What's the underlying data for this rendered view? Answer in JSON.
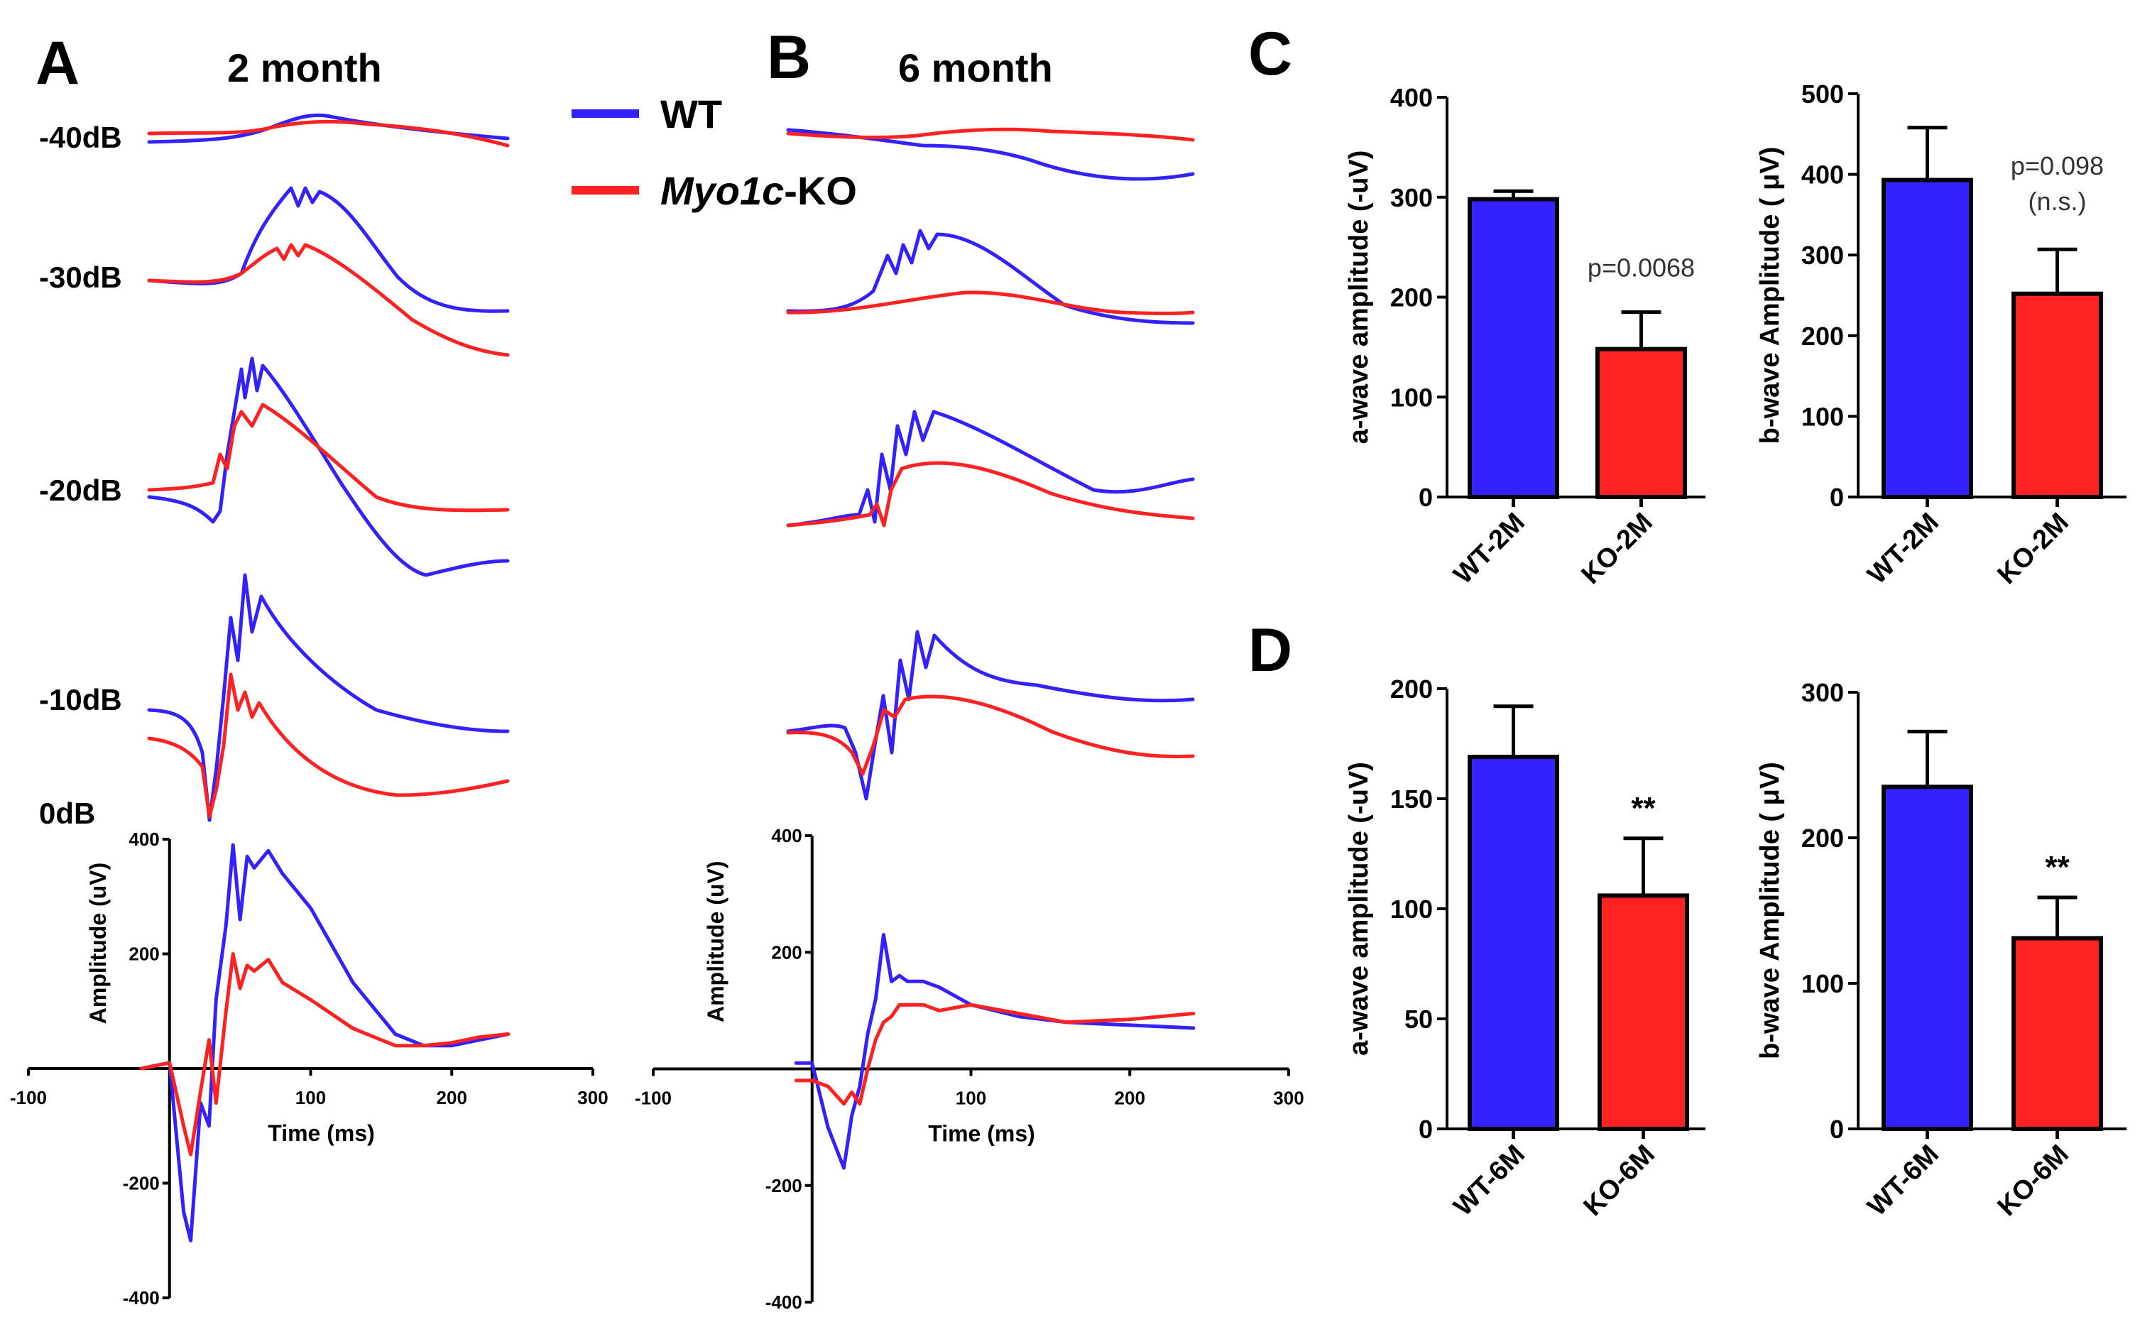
{
  "panels": {
    "A": {
      "letter": "A",
      "title": "2 month"
    },
    "B": {
      "letter": "B",
      "title": "6 month"
    },
    "C": {
      "letter": "C"
    },
    "D": {
      "letter": "D"
    }
  },
  "db_labels": [
    "-40dB",
    "-30dB",
    "-20dB",
    "-10dB",
    "0dB"
  ],
  "legend": {
    "wt": "WT",
    "ko_italic": "Myo1c",
    "ko_suffix": "-KO"
  },
  "colors": {
    "wt": "#3322ff",
    "ko": "#ff2222",
    "axis": "#000000"
  },
  "chart_data": [
    {
      "id": "A-0dB",
      "type": "line",
      "xlabel": "Time (ms)",
      "ylabel": "Amplitude (uV)",
      "xlim": [
        -100,
        300
      ],
      "ylim": [
        -400,
        400
      ],
      "xticks": [
        "-100",
        "100",
        "200",
        "300"
      ],
      "yticks": [
        "400",
        "200",
        "-200",
        "-400"
      ],
      "series": [
        {
          "name": "WT",
          "color": "#3322ff",
          "x": [
            -20,
            0,
            10,
            15,
            22,
            28,
            33,
            40,
            45,
            50,
            55,
            60,
            70,
            80,
            100,
            130,
            160,
            180,
            200,
            220,
            240
          ],
          "y": [
            0,
            10,
            -250,
            -300,
            -60,
            -100,
            120,
            250,
            390,
            260,
            370,
            350,
            380,
            340,
            280,
            150,
            60,
            40,
            40,
            50,
            60
          ]
        },
        {
          "name": "Myo1c-KO",
          "color": "#ff2222",
          "x": [
            -20,
            0,
            10,
            15,
            22,
            28,
            33,
            40,
            45,
            50,
            55,
            60,
            70,
            80,
            100,
            130,
            160,
            180,
            200,
            220,
            240
          ],
          "y": [
            0,
            10,
            -100,
            -150,
            -40,
            50,
            -60,
            100,
            200,
            140,
            180,
            170,
            190,
            150,
            120,
            70,
            40,
            40,
            45,
            55,
            60
          ]
        }
      ]
    },
    {
      "id": "B-0dB",
      "type": "line",
      "xlabel": "Time (ms)",
      "ylabel": "Amplitude (uV)",
      "xlim": [
        -100,
        300
      ],
      "ylim": [
        -400,
        400
      ],
      "xticks": [
        "-100",
        "100",
        "200",
        "300"
      ],
      "yticks": [
        "400",
        "200",
        "-200",
        "-400"
      ],
      "series": [
        {
          "name": "WT",
          "color": "#3322ff",
          "x": [
            -10,
            0,
            10,
            20,
            25,
            30,
            35,
            40,
            45,
            50,
            55,
            60,
            70,
            80,
            100,
            130,
            160,
            200,
            240
          ],
          "y": [
            10,
            10,
            -100,
            -170,
            -80,
            -30,
            60,
            120,
            230,
            150,
            160,
            150,
            150,
            140,
            110,
            90,
            80,
            75,
            70
          ]
        },
        {
          "name": "Myo1c-KO",
          "color": "#ff2222",
          "x": [
            -10,
            0,
            10,
            20,
            25,
            30,
            35,
            40,
            45,
            50,
            55,
            60,
            70,
            80,
            100,
            130,
            160,
            200,
            240
          ],
          "y": [
            -20,
            -20,
            -30,
            -60,
            -40,
            -60,
            0,
            50,
            80,
            90,
            110,
            110,
            110,
            100,
            110,
            95,
            80,
            85,
            95
          ]
        }
      ]
    },
    {
      "id": "C-a-wave",
      "type": "bar",
      "ylabel": "a-wave amplitude (-uV)",
      "categories": [
        "WT-2M",
        "KO-2M"
      ],
      "values": [
        298,
        148
      ],
      "errors": [
        8,
        37
      ],
      "ylim": [
        0,
        400
      ],
      "yticks": [
        "0",
        "100",
        "200",
        "300",
        "400"
      ],
      "annotation": "p=0.0068"
    },
    {
      "id": "C-b-wave",
      "type": "bar",
      "ylabel": "b-wave Amplitude ( μV)",
      "categories": [
        "WT-2M",
        "KO-2M"
      ],
      "values": [
        393,
        252
      ],
      "errors": [
        65,
        55
      ],
      "ylim": [
        0,
        500
      ],
      "yticks": [
        "0",
        "100",
        "200",
        "300",
        "400",
        "500"
      ],
      "annotation": "p=0.098",
      "annotation2": "(n.s.)"
    },
    {
      "id": "D-a-wave",
      "type": "bar",
      "ylabel": "a-wave amplitude (-uV)",
      "categories": [
        "WT-6M",
        "KO-6M"
      ],
      "values": [
        169,
        106
      ],
      "errors": [
        23,
        26
      ],
      "ylim": [
        0,
        200
      ],
      "yticks": [
        "0",
        "50",
        "100",
        "150",
        "200"
      ],
      "annotation": "**"
    },
    {
      "id": "D-b-wave",
      "type": "bar",
      "ylabel": "b-wave Amplitude ( μV)",
      "categories": [
        "WT-6M",
        "KO-6M"
      ],
      "values": [
        235,
        131
      ],
      "errors": [
        38,
        28
      ],
      "ylim": [
        0,
        300
      ],
      "yticks": [
        "0",
        "100",
        "200",
        "300"
      ],
      "annotation": "**"
    }
  ]
}
